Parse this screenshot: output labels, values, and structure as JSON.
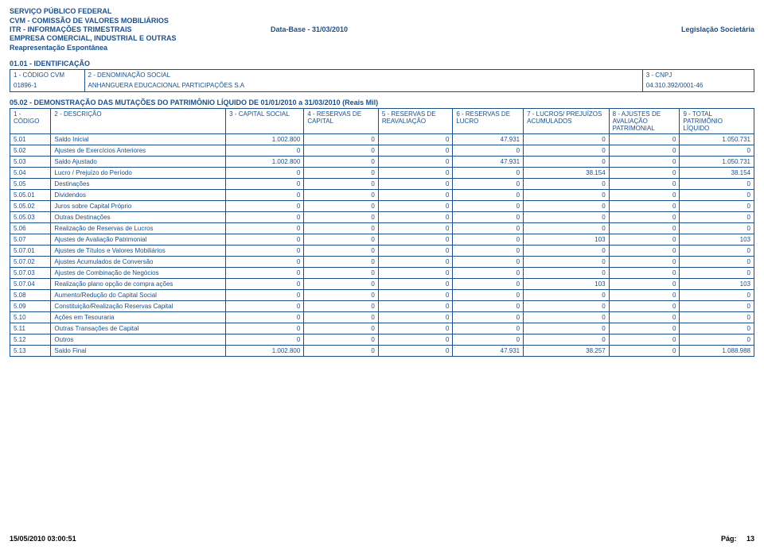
{
  "header": {
    "line1": "SERVIÇO PÚBLICO FEDERAL",
    "line2": "CVM - COMISSÃO DE VALORES MOBILIÁRIOS",
    "line3_left": "ITR - INFORMAÇÕES TRIMESTRAIS",
    "line3_mid": "Data-Base - 31/03/2010",
    "line3_right": "Legislação Societária",
    "line4": "EMPRESA COMERCIAL, INDUSTRIAL E OUTRAS",
    "line5": "Reapresentação Espontânea"
  },
  "section1_title": "01.01 - IDENTIFICAÇÃO",
  "ident": {
    "headers": {
      "c1": "1 - CÓDIGO CVM",
      "c2": "2 - DENOMINAÇÃO SOCIAL",
      "c3": "3 - CNPJ"
    },
    "values": {
      "c1": "01896-1",
      "c2": "ANHANGUERA EDUCACIONAL PARTICIPAÇÕES S.A",
      "c3": "04.310.392/0001-46"
    }
  },
  "section2_title": "05.02 - DEMONSTRAÇÃO DAS MUTAÇÕES DO PATRIMÔNIO LÍQUIDO DE 01/01/2010 a 31/03/2010 (Reais Mil)",
  "mut": {
    "cols": {
      "c1": "1 - CÓDIGO",
      "c2": "2 - DESCRIÇÃO",
      "c3": "3 - CAPITAL SOCIAL",
      "c4": "4 - RESERVAS DE CAPITAL",
      "c5": "5 - RESERVAS DE REAVALIAÇÃO",
      "c6": "6 - RESERVAS DE LUCRO",
      "c7": "7 - LUCROS/ PREJUÍZOS ACUMULADOS",
      "c8": "8 - AJUSTES DE AVALIAÇÃO PATRIMONIAL",
      "c9": "9 - TOTAL PATRIMÔNIO LÍQUIDO"
    },
    "rows": [
      {
        "code": "5.01",
        "desc": "Saldo Inicial",
        "v": [
          "1.002.800",
          "0",
          "0",
          "47.931",
          "0",
          "0",
          "1.050.731"
        ]
      },
      {
        "code": "5.02",
        "desc": "Ajustes de Exercícios Anteriores",
        "v": [
          "0",
          "0",
          "0",
          "0",
          "0",
          "0",
          "0"
        ]
      },
      {
        "code": "5.03",
        "desc": "Saldo Ajustado",
        "v": [
          "1.002.800",
          "0",
          "0",
          "47.931",
          "0",
          "0",
          "1.050.731"
        ]
      },
      {
        "code": "5.04",
        "desc": "Lucro / Prejuízo do Período",
        "v": [
          "0",
          "0",
          "0",
          "0",
          "38.154",
          "0",
          "38.154"
        ]
      },
      {
        "code": "5.05",
        "desc": "Destinações",
        "v": [
          "0",
          "0",
          "0",
          "0",
          "0",
          "0",
          "0"
        ]
      },
      {
        "code": "5.05.01",
        "desc": "Dividendos",
        "v": [
          "0",
          "0",
          "0",
          "0",
          "0",
          "0",
          "0"
        ]
      },
      {
        "code": "5.05.02",
        "desc": "Juros sobre Capital Próprio",
        "v": [
          "0",
          "0",
          "0",
          "0",
          "0",
          "0",
          "0"
        ]
      },
      {
        "code": "5.05.03",
        "desc": "Outras Destinações",
        "v": [
          "0",
          "0",
          "0",
          "0",
          "0",
          "0",
          "0"
        ]
      },
      {
        "code": "5.06",
        "desc": "Realização de Reservas de Lucros",
        "v": [
          "0",
          "0",
          "0",
          "0",
          "0",
          "0",
          "0"
        ]
      },
      {
        "code": "5.07",
        "desc": "Ajustes de Avaliação Patrimonial",
        "v": [
          "0",
          "0",
          "0",
          "0",
          "103",
          "0",
          "103"
        ]
      },
      {
        "code": "5.07.01",
        "desc": "Ajustes de Títulos e Valores Mobiliários",
        "v": [
          "0",
          "0",
          "0",
          "0",
          "0",
          "0",
          "0"
        ]
      },
      {
        "code": "5.07.02",
        "desc": "Ajustes Acumulados de Conversão",
        "v": [
          "0",
          "0",
          "0",
          "0",
          "0",
          "0",
          "0"
        ]
      },
      {
        "code": "5.07.03",
        "desc": "Ajustes de Combinação de Negócios",
        "v": [
          "0",
          "0",
          "0",
          "0",
          "0",
          "0",
          "0"
        ]
      },
      {
        "code": "5.07.04",
        "desc": "Realização plano opção de compra ações",
        "v": [
          "0",
          "0",
          "0",
          "0",
          "103",
          "0",
          "103"
        ]
      },
      {
        "code": "5.08",
        "desc": "Aumento/Redução do Capital Social",
        "v": [
          "0",
          "0",
          "0",
          "0",
          "0",
          "0",
          "0"
        ]
      },
      {
        "code": "5.09",
        "desc": "Constituição/Realização Reservas Capital",
        "v": [
          "0",
          "0",
          "0",
          "0",
          "0",
          "0",
          "0"
        ]
      },
      {
        "code": "5.10",
        "desc": "Ações em Tesouraria",
        "v": [
          "0",
          "0",
          "0",
          "0",
          "0",
          "0",
          "0"
        ]
      },
      {
        "code": "5.11",
        "desc": "Outras Transações de Capital",
        "v": [
          "0",
          "0",
          "0",
          "0",
          "0",
          "0",
          "0"
        ]
      },
      {
        "code": "5.12",
        "desc": "Outros",
        "v": [
          "0",
          "0",
          "0",
          "0",
          "0",
          "0",
          "0"
        ]
      },
      {
        "code": "5.13",
        "desc": "Saldo Final",
        "v": [
          "1.002.800",
          "0",
          "0",
          "47.931",
          "38.257",
          "0",
          "1.088.988"
        ]
      }
    ]
  },
  "footer": {
    "timestamp": "15/05/2010 03:00:51",
    "page_label": "Pág:",
    "page_num": "13"
  },
  "style": {
    "text_color": "#1a4f8a",
    "border_color": "#1a4f8a",
    "bg_color": "#ffffff",
    "footer_color": "#000000",
    "col_widths_pct": [
      5.5,
      23.5,
      10.5,
      10,
      10,
      9.5,
      11.5,
      9.5,
      10
    ]
  }
}
